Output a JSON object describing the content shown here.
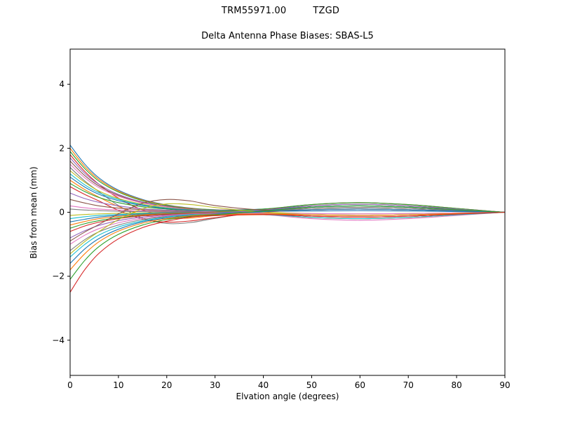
{
  "header": {
    "antenna": "TRM55971.00",
    "dome": "TZGD"
  },
  "chart_data": {
    "type": "line",
    "title": "TRM55971.00    TZGD",
    "subtitle": "Delta Antenna Phase Biases: SBAS-L5",
    "xlabel": "Elvation angle (degrees)",
    "ylabel": "Bias from mean (mm)",
    "xlim": [
      0,
      90
    ],
    "ylim": [
      -5.1,
      5.1
    ],
    "xticks": [
      0,
      10,
      20,
      30,
      40,
      50,
      60,
      70,
      80,
      90
    ],
    "yticks": [
      -4,
      -2,
      0,
      2,
      4
    ],
    "grid": false,
    "legend": "none",
    "palette": [
      "#1f77b4",
      "#ff7f0e",
      "#2ca02c",
      "#d62728",
      "#9467bd",
      "#8c564b",
      "#e377c2",
      "#7f7f7f",
      "#bcbd22",
      "#17becf"
    ],
    "x": [
      0,
      3,
      6,
      10,
      15,
      20,
      25,
      30,
      40,
      50,
      60,
      70,
      80,
      90
    ],
    "series": [
      {
        "values": [
          2.1,
          1.51,
          1.07,
          0.69,
          0.4,
          0.23,
          0.13,
          0.08,
          0.1,
          0.2,
          0.25,
          0.2,
          0.1,
          0.0
        ]
      },
      {
        "values": [
          2.0,
          1.44,
          1.02,
          0.66,
          0.38,
          0.22,
          0.12,
          0.08,
          0.07,
          0.12,
          0.15,
          0.12,
          0.06,
          0.0
        ]
      },
      {
        "values": [
          1.9,
          1.37,
          0.97,
          0.63,
          0.36,
          0.21,
          0.11,
          0.08,
          -0.01,
          -0.08,
          -0.1,
          -0.08,
          -0.04,
          0.0
        ]
      },
      {
        "values": [
          1.8,
          1.28,
          0.87,
          0.44,
          0.07,
          -0.1,
          -0.13,
          -0.08,
          0.08,
          0.24,
          0.3,
          0.24,
          0.12,
          0.0
        ]
      },
      {
        "values": [
          1.7,
          1.22,
          0.87,
          0.56,
          0.32,
          0.19,
          0.1,
          0.07,
          0.08,
          0.16,
          0.2,
          0.16,
          0.08,
          0.0
        ]
      },
      {
        "values": [
          1.6,
          1.15,
          0.82,
          0.53,
          0.3,
          0.18,
          0.1,
          0.06,
          -0.03,
          -0.12,
          -0.15,
          -0.12,
          -0.06,
          0.0
        ]
      },
      {
        "values": [
          1.5,
          1.08,
          0.77,
          0.5,
          0.29,
          0.17,
          0.09,
          0.06,
          0.04,
          0.08,
          0.1,
          0.08,
          0.04,
          0.0
        ]
      },
      {
        "values": [
          1.4,
          0.98,
          0.64,
          0.21,
          -0.18,
          -0.35,
          -0.32,
          -0.19,
          0.04,
          0.2,
          0.25,
          0.2,
          0.1,
          0.0
        ]
      },
      {
        "values": [
          1.3,
          0.94,
          0.66,
          0.43,
          0.25,
          0.14,
          0.08,
          0.05,
          0.0,
          -0.04,
          -0.05,
          -0.04,
          -0.02,
          0.0
        ]
      },
      {
        "values": [
          1.2,
          0.86,
          0.61,
          0.4,
          0.23,
          0.13,
          0.07,
          0.05,
          0.07,
          0.16,
          0.2,
          0.16,
          0.08,
          0.0
        ]
      },
      {
        "values": [
          1.1,
          0.79,
          0.56,
          0.36,
          0.21,
          0.12,
          0.07,
          0.04,
          0.03,
          0.04,
          0.05,
          0.04,
          0.02,
          0.0
        ]
      },
      {
        "values": [
          1.0,
          0.71,
          0.47,
          0.18,
          -0.08,
          -0.19,
          -0.18,
          -0.11,
          -0.08,
          -0.16,
          -0.2,
          -0.16,
          -0.08,
          0.0
        ]
      },
      {
        "values": [
          0.9,
          0.65,
          0.46,
          0.3,
          0.17,
          0.1,
          0.05,
          0.04,
          0.1,
          0.24,
          0.3,
          0.24,
          0.12,
          0.0
        ]
      },
      {
        "values": [
          0.8,
          0.56,
          0.35,
          0.06,
          -0.21,
          -0.31,
          -0.27,
          -0.17,
          0.0,
          0.08,
          0.1,
          0.08,
          0.04,
          0.0
        ]
      },
      {
        "values": [
          0.6,
          0.43,
          0.31,
          0.2,
          0.11,
          0.07,
          0.04,
          0.02,
          -0.02,
          -0.08,
          -0.1,
          -0.08,
          -0.04,
          0.0
        ]
      },
      {
        "values": [
          0.4,
          0.29,
          0.2,
          0.13,
          0.08,
          0.04,
          0.02,
          0.02,
          0.06,
          0.16,
          0.2,
          0.16,
          0.08,
          0.0
        ]
      },
      {
        "values": [
          0.2,
          0.14,
          0.1,
          0.07,
          0.04,
          0.02,
          0.01,
          0.01,
          -0.07,
          -0.2,
          -0.25,
          -0.2,
          -0.1,
          0.0
        ]
      },
      {
        "values": [
          0.1,
          0.07,
          0.05,
          0.03,
          0.02,
          0.01,
          0.01,
          0.0,
          0.05,
          0.12,
          0.15,
          0.12,
          0.06,
          0.0
        ]
      },
      {
        "values": [
          -0.1,
          -0.07,
          -0.05,
          -0.03,
          -0.02,
          -0.01,
          -0.01,
          0.0,
          0.07,
          0.2,
          0.25,
          0.2,
          0.1,
          0.0
        ]
      },
      {
        "values": [
          -0.2,
          -0.14,
          -0.1,
          -0.07,
          -0.04,
          -0.02,
          -0.01,
          -0.01,
          -0.03,
          -0.08,
          -0.1,
          -0.08,
          -0.04,
          0.0
        ]
      },
      {
        "values": [
          -0.3,
          -0.22,
          -0.15,
          -0.1,
          -0.06,
          -0.02,
          -0.01,
          -0.01,
          0.06,
          0.16,
          0.2,
          0.16,
          0.08,
          0.0
        ]
      },
      {
        "values": [
          -0.4,
          -0.29,
          -0.2,
          -0.13,
          -0.08,
          -0.04,
          -0.02,
          -0.02,
          -0.06,
          -0.16,
          -0.2,
          -0.16,
          -0.08,
          0.0
        ]
      },
      {
        "values": [
          -0.5,
          -0.36,
          -0.26,
          -0.17,
          -0.1,
          -0.06,
          -0.03,
          -0.02,
          0.02,
          0.08,
          0.1,
          0.08,
          0.04,
          0.0
        ]
      },
      {
        "values": [
          -0.6,
          -0.43,
          -0.31,
          -0.2,
          -0.11,
          -0.07,
          -0.04,
          -0.02,
          -0.05,
          -0.12,
          -0.15,
          -0.12,
          -0.06,
          0.0
        ]
      },
      {
        "values": [
          -0.8,
          -0.58,
          -0.41,
          -0.26,
          -0.15,
          -0.09,
          -0.05,
          -0.03,
          0.07,
          0.2,
          0.25,
          0.2,
          0.1,
          0.0
        ]
      },
      {
        "values": [
          -0.9,
          -0.62,
          -0.38,
          -0.05,
          0.28,
          0.4,
          0.35,
          0.21,
          0.07,
          0.08,
          0.1,
          0.08,
          0.04,
          0.0
        ]
      },
      {
        "values": [
          -1.0,
          -0.72,
          -0.51,
          -0.33,
          -0.19,
          -0.11,
          -0.06,
          -0.04,
          -0.03,
          -0.04,
          -0.05,
          -0.04,
          -0.02,
          0.0
        ]
      },
      {
        "values": [
          -1.2,
          -0.86,
          -0.61,
          -0.4,
          -0.23,
          -0.13,
          -0.07,
          -0.05,
          0.03,
          0.12,
          0.15,
          0.12,
          0.06,
          0.0
        ]
      },
      {
        "values": [
          -1.3,
          -0.92,
          -0.6,
          -0.23,
          0.11,
          0.26,
          0.24,
          0.15,
          0.0,
          -0.08,
          -0.1,
          -0.08,
          -0.04,
          0.0
        ]
      },
      {
        "values": [
          -1.4,
          -1.01,
          -0.71,
          -0.46,
          -0.27,
          -0.15,
          -0.08,
          -0.06,
          -0.07,
          -0.16,
          -0.2,
          -0.16,
          -0.08,
          0.0
        ]
      },
      {
        "values": [
          -1.6,
          -1.15,
          -0.82,
          -0.53,
          -0.3,
          -0.18,
          -0.1,
          -0.06,
          0.02,
          0.08,
          0.1,
          0.08,
          0.04,
          0.0
        ]
      },
      {
        "values": [
          -1.8,
          -1.3,
          -0.92,
          -0.59,
          -0.34,
          -0.2,
          -0.11,
          -0.07,
          -0.05,
          -0.08,
          -0.1,
          -0.08,
          -0.04,
          0.0
        ]
      },
      {
        "values": [
          -2.1,
          -1.51,
          -1.07,
          -0.69,
          -0.4,
          -0.23,
          -0.13,
          -0.08,
          0.04,
          0.16,
          0.2,
          0.16,
          0.08,
          0.0
        ]
      },
      {
        "values": [
          -2.5,
          -1.8,
          -1.28,
          -0.83,
          -0.48,
          -0.28,
          -0.15,
          -0.1,
          -0.07,
          -0.12,
          -0.15,
          -0.12,
          -0.06,
          0.0
        ]
      }
    ]
  }
}
